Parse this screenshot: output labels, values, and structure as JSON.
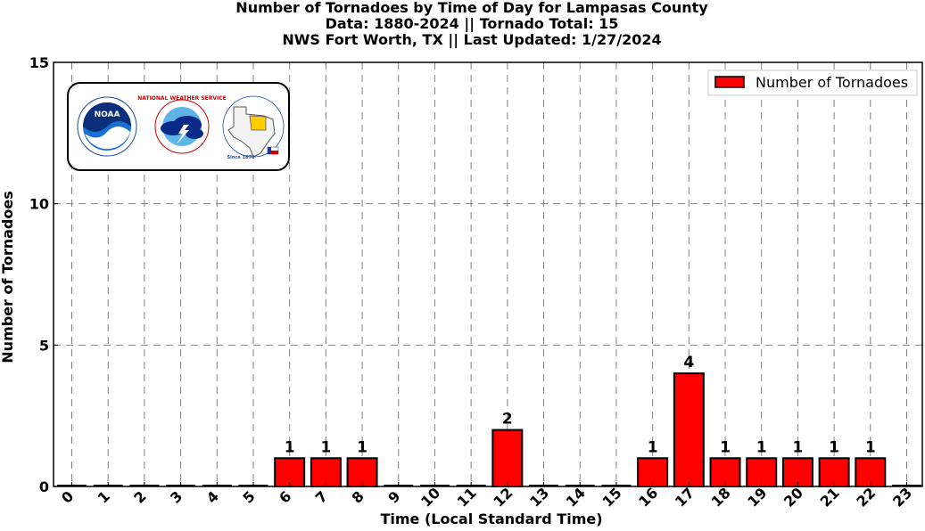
{
  "title_lines": [
    "Number of Tornadoes by Time of Day for Lampasas County",
    "Data: 1880-2024 || Tornado Total: 15",
    "NWS Fort Worth, TX || Last Updated: 1/27/2024"
  ],
  "chart_data": {
    "type": "bar",
    "title": "Number of Tornadoes by Time of Day for Lampasas County",
    "subtitle": "Data: 1880-2024 || Tornado Total: 15 | NWS Fort Worth, TX || Last Updated: 1/27/2024",
    "xlabel": "Time (Local Standard Time)",
    "ylabel": "Number of Tornadoes",
    "categories": [
      "0",
      "1",
      "2",
      "3",
      "4",
      "5",
      "6",
      "7",
      "8",
      "9",
      "10",
      "11",
      "12",
      "13",
      "14",
      "15",
      "16",
      "17",
      "18",
      "19",
      "20",
      "21",
      "22",
      "23"
    ],
    "series": [
      {
        "name": "Number of Tornadoes",
        "values": [
          0,
          0,
          0,
          0,
          0,
          0,
          1,
          1,
          1,
          0,
          0,
          0,
          2,
          0,
          0,
          0,
          1,
          4,
          1,
          1,
          1,
          1,
          1,
          0
        ],
        "color": "#ff0000",
        "edgecolor": "#000000"
      }
    ],
    "ylim": [
      0,
      15
    ],
    "yticks": [
      "0",
      "5",
      "10",
      "15"
    ],
    "grid": true,
    "grid_style": "dashed",
    "legend_position": "top-right"
  },
  "logos": {
    "noaa_text": "NOAA",
    "nws_arc_text": "NATIONAL WEATHER SERVICE",
    "fwd_arc_text": "Protecting Life And Property Across North Texas",
    "fwd_since_text": "Since 1870"
  },
  "colors": {
    "bar_fill": "#ff0000",
    "bar_edge": "#000000",
    "grid": "#808080"
  }
}
